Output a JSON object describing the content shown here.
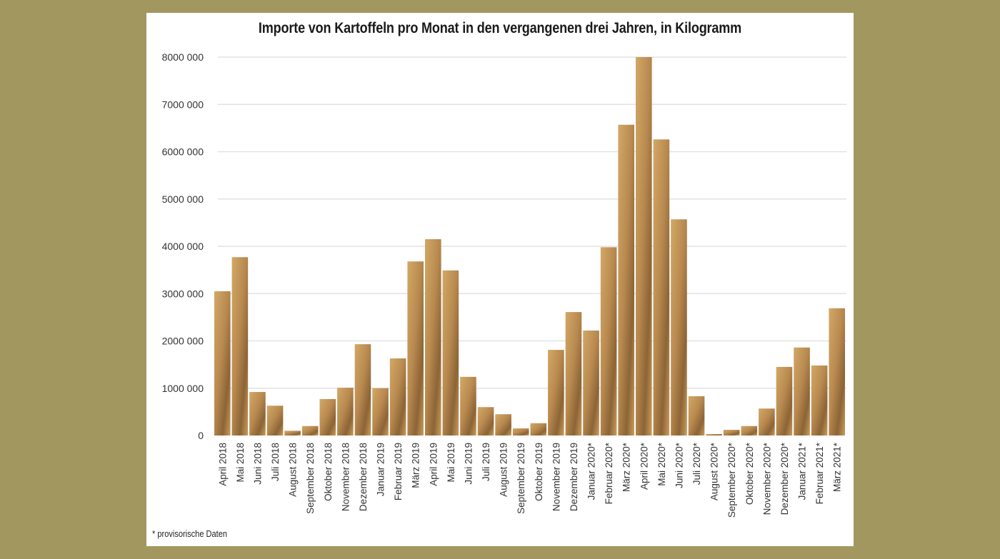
{
  "chart_data": {
    "type": "bar",
    "title": "Importe von Kartoffeln pro Monat in den vergangenen drei Jahren, in Kilogramm",
    "xlabel": "",
    "ylabel": "",
    "ylim": [
      0,
      8000000
    ],
    "yticks": [
      0,
      1000000,
      2000000,
      3000000,
      4000000,
      5000000,
      6000000,
      7000000,
      8000000
    ],
    "ytick_labels": [
      "0",
      "1000 000",
      "2000 000",
      "3000 000",
      "4000 000",
      "5000 000",
      "6000 000",
      "7000 000",
      "8000 000"
    ],
    "grid": true,
    "categories": [
      "April 2018",
      "Mai 2018",
      "Juni 2018",
      "Juli 2018",
      "August 2018",
      "September 2018",
      "Oktober 2018",
      "November 2018",
      "Dezember 2018",
      "Januar 2019",
      "Februar 2019",
      "März 2019",
      "April 2019",
      "Mai 2019",
      "Juni 2019",
      "Juli 2019",
      "August 2019",
      "September 2019",
      "Oktober 2019",
      "November 2019",
      "Dezember 2019",
      "Januar 2020*",
      "Februar 2020*",
      "März 2020*",
      "April 2020*",
      "Mai 2020*",
      "Juni 2020*",
      "Juli 2020*",
      "August 2020*",
      "September 2020*",
      "Oktober 2020*",
      "November 2020*",
      "Dezember 2020*",
      "Januar 2021*",
      "Februar 2021*",
      "März 2021*"
    ],
    "values": [
      3050000,
      3770000,
      920000,
      630000,
      100000,
      200000,
      770000,
      1010000,
      1930000,
      1000000,
      1630000,
      3680000,
      4150000,
      3490000,
      1240000,
      600000,
      450000,
      150000,
      260000,
      1810000,
      2610000,
      2220000,
      3980000,
      6570000,
      8000000,
      6260000,
      4570000,
      830000,
      30000,
      120000,
      200000,
      570000,
      1450000,
      1860000,
      1480000,
      2690000
    ],
    "bar_color": "#b8894f",
    "footnote": "* provisorische Daten"
  }
}
